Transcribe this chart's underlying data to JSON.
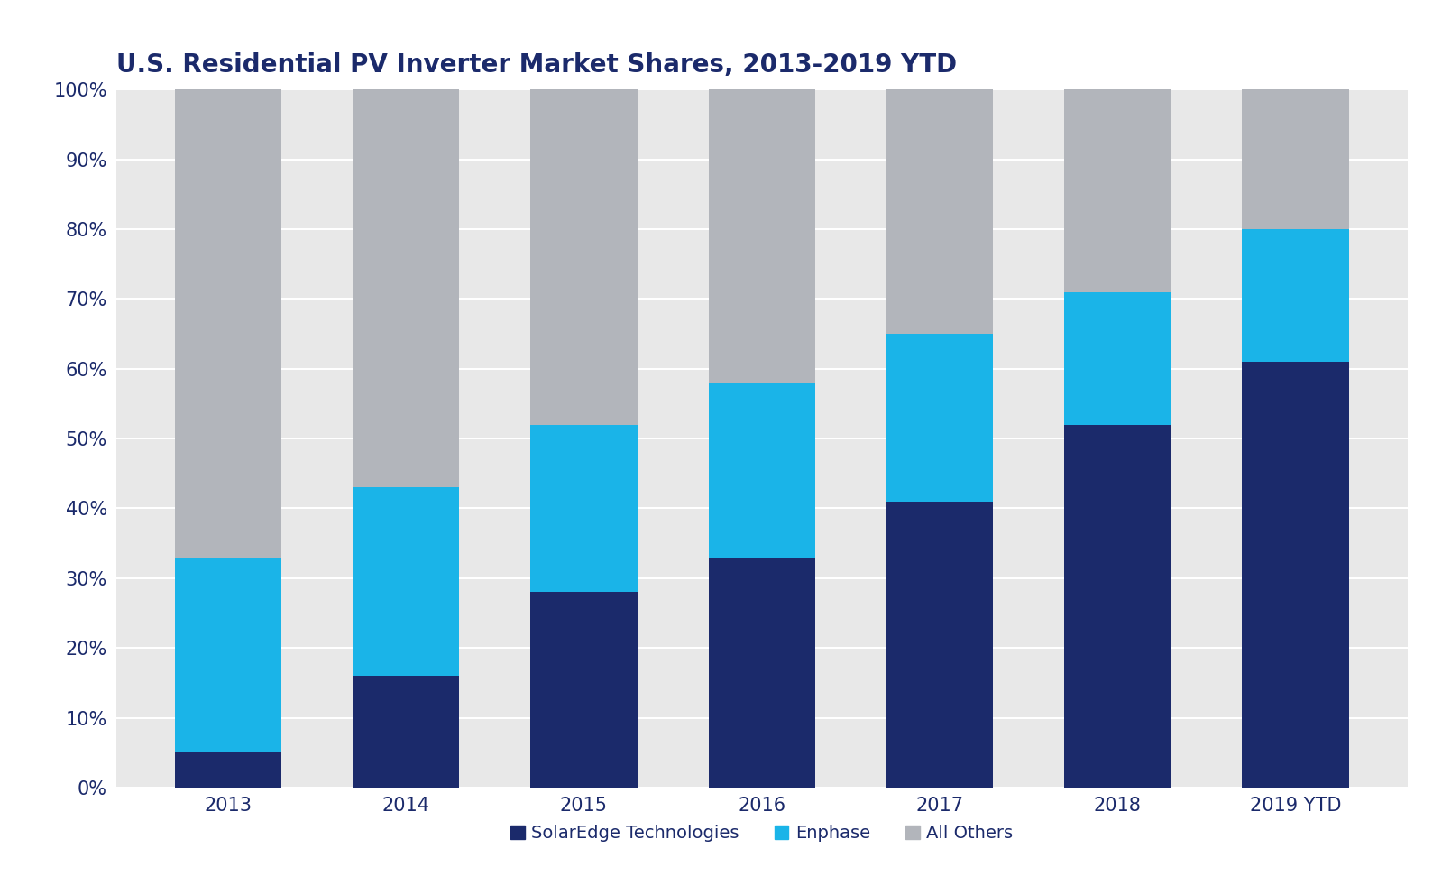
{
  "title": "U.S. Residential PV Inverter Market Shares, 2013-2019 YTD",
  "categories": [
    "2013",
    "2014",
    "2015",
    "2016",
    "2017",
    "2018",
    "2019 YTD"
  ],
  "solaredge": [
    5,
    16,
    28,
    33,
    41,
    52,
    61
  ],
  "enphase": [
    28,
    27,
    24,
    25,
    24,
    19,
    19
  ],
  "others": [
    67,
    57,
    48,
    42,
    35,
    29,
    20
  ],
  "colors": {
    "solaredge": "#1b2a6b",
    "enphase": "#1ab4e8",
    "others": "#b2b5bb"
  },
  "legend_labels": [
    "SolarEdge Technologies",
    "Enphase",
    "All Others"
  ],
  "yticks": [
    0,
    10,
    20,
    30,
    40,
    50,
    60,
    70,
    80,
    90,
    100
  ],
  "figure_background": "#ffffff",
  "plot_background": "#e8e8e8",
  "title_color": "#1b2a6b",
  "tick_color": "#1b2a6b",
  "title_fontsize": 20,
  "tick_fontsize": 15,
  "legend_fontsize": 14,
  "bar_width": 0.6
}
